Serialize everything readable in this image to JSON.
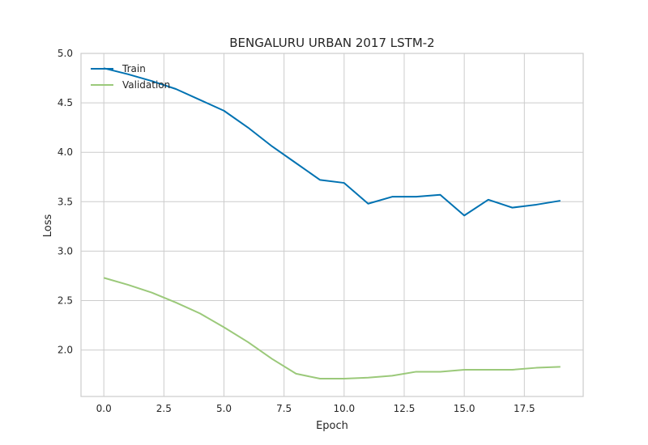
{
  "chart_data": {
    "type": "line",
    "title": "BENGALURU URBAN 2017 LSTM-2",
    "xlabel": "Epoch",
    "ylabel": "Loss",
    "xlim": [
      -0.95,
      19.95
    ],
    "ylim": [
      1.53,
      5.0
    ],
    "xticks": [
      "0.0",
      "2.5",
      "5.0",
      "7.5",
      "10.0",
      "12.5",
      "15.0",
      "17.5"
    ],
    "yticks": [
      "2.0",
      "2.5",
      "3.0",
      "3.5",
      "4.0",
      "4.5",
      "5.0"
    ],
    "grid": true,
    "legend_position": "upper-left",
    "x": [
      0,
      1,
      2,
      3,
      4,
      5,
      6,
      7,
      8,
      9,
      10,
      11,
      12,
      13,
      14,
      15,
      16,
      17,
      18,
      19
    ],
    "series": [
      {
        "name": "Train",
        "color": "#0072b2",
        "values": [
          4.85,
          4.79,
          4.72,
          4.64,
          4.53,
          4.42,
          4.25,
          4.06,
          3.89,
          3.72,
          3.69,
          3.48,
          3.55,
          3.55,
          3.57,
          3.36,
          3.52,
          3.44,
          3.47,
          3.51
        ]
      },
      {
        "name": "Validation",
        "color": "#9bc97a",
        "values": [
          2.73,
          2.66,
          2.58,
          2.48,
          2.37,
          2.23,
          2.08,
          1.91,
          1.76,
          1.71,
          1.71,
          1.72,
          1.74,
          1.78,
          1.78,
          1.8,
          1.8,
          1.8,
          1.82,
          1.83
        ]
      }
    ]
  }
}
